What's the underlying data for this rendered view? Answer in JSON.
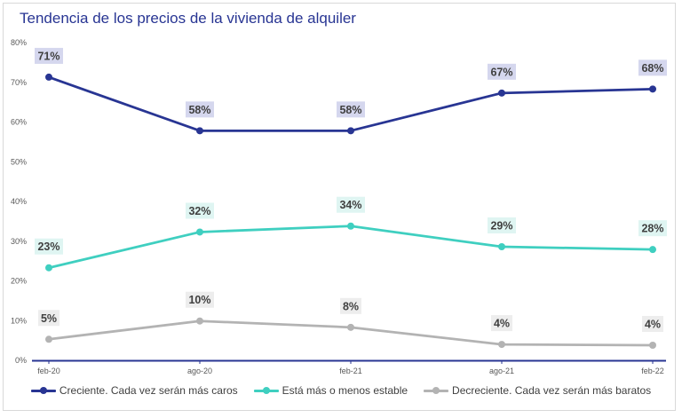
{
  "title": "Tendencia de los precios de la vivienda de alquiler",
  "chart_data": {
    "type": "line",
    "categories": [
      "feb-20",
      "ago-20",
      "feb-21",
      "ago-21",
      "feb-22"
    ],
    "ylim": [
      0,
      80
    ],
    "yticks": [
      "0%",
      "10%",
      "20%",
      "30%",
      "40%",
      "50%",
      "60%",
      "70%",
      "80%"
    ],
    "grid": false,
    "legend_position": "bottom",
    "series": [
      {
        "name": "Creciente. Cada vez serán más caros",
        "color": "#283593",
        "label_bg": "#d5d7ee",
        "values": [
          71.3,
          57.8,
          57.8,
          67.3,
          68.3
        ],
        "labels": [
          "71%",
          "58%",
          "58%",
          "67%",
          "68%"
        ]
      },
      {
        "name": "Está más o menos estable",
        "color": "#3fcfc0",
        "label_bg": "#dff5f2",
        "values": [
          23.3,
          32.3,
          33.8,
          28.6,
          27.9
        ],
        "labels": [
          "23%",
          "32%",
          "34%",
          "29%",
          "28%"
        ]
      },
      {
        "name": "Decreciente. Cada vez serán más baratos",
        "color": "#b3b3b3",
        "label_bg": "#ededed",
        "values": [
          5.3,
          9.9,
          8.3,
          4.0,
          3.8
        ],
        "labels": [
          "5%",
          "10%",
          "8%",
          "4%",
          "4%"
        ]
      }
    ]
  }
}
